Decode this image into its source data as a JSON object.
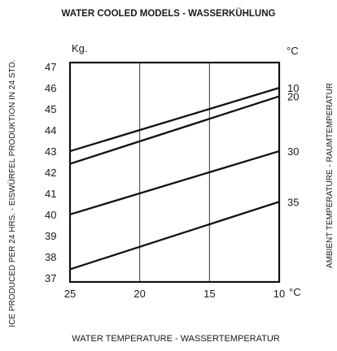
{
  "chart_data": {
    "type": "line",
    "title": "WATER COOLED MODELS - WASSERKÜHLUNG",
    "xlabel": "WATER TEMPERATURE - WASSERTEMPERATUR",
    "ylabel": "ICE PRODUCED PER 24 HRS. - EISWÜRFEL PRODUKTION IN 24 STD.",
    "right_axis_label": "AMBIENT TEMPERATURE - RAUMTEMPERATUR",
    "y_unit": "Kg.",
    "right_unit": "°C",
    "x_unit": "°C",
    "x_ticks": [
      "25",
      "20",
      "15",
      "10"
    ],
    "y_ticks": [
      "37",
      "38",
      "39",
      "40",
      "41",
      "42",
      "43",
      "44",
      "45",
      "46",
      "47"
    ],
    "x": [
      25,
      10
    ],
    "xlim": [
      25,
      10
    ],
    "ylim": [
      36.8,
      47.2
    ],
    "grid": true,
    "series": [
      {
        "name": "10",
        "values": [
          43.0,
          46.0
        ]
      },
      {
        "name": "20",
        "values": [
          42.4,
          45.6
        ]
      },
      {
        "name": "30",
        "values": [
          40.0,
          43.0
        ]
      },
      {
        "name": "35",
        "values": [
          37.4,
          40.6
        ]
      }
    ]
  }
}
